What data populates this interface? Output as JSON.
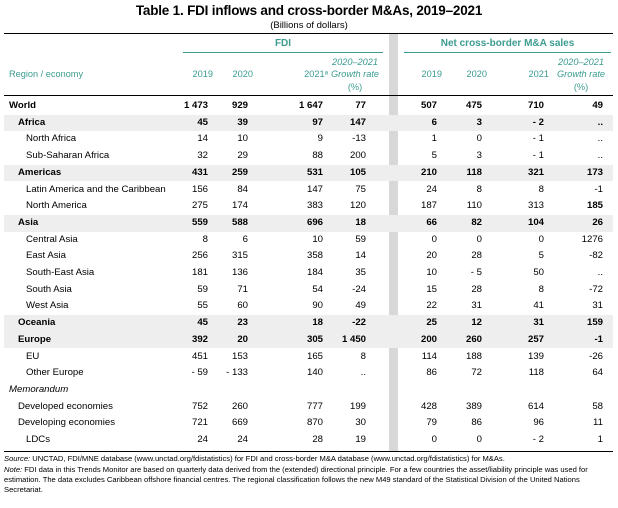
{
  "title": "Table 1. FDI inflows and cross-border M&As, 2019–2021",
  "subtitle": "(Billions of dollars)",
  "groups": {
    "fdi": "FDI",
    "ma": "Net cross-border M&A sales"
  },
  "headers": {
    "region": "Region / economy",
    "fdi_2019": "2019",
    "fdi_2020": "2020",
    "fdi_2021": "2021ᵃ",
    "fdi_rate_1": "2020–2021",
    "fdi_rate_2": "Growth rate",
    "fdi_rate_3": "(%)",
    "ma_2019": "2019",
    "ma_2020": "2020",
    "ma_2021": "2021",
    "ma_rate_1": "2020–2021",
    "ma_rate_2": "Growth rate",
    "ma_rate_3": "(%)"
  },
  "rows": [
    {
      "label": "World",
      "v": [
        "1 473",
        "929",
        "1 647",
        "77",
        "507",
        "475",
        "710",
        "49"
      ]
    },
    {
      "label": "Africa",
      "v": [
        "45",
        "39",
        "97",
        "147",
        "6",
        "3",
        "- 2",
        ".."
      ]
    },
    {
      "label": "North Africa",
      "v": [
        "14",
        "10",
        "9",
        "-13",
        "1",
        "0",
        "- 1",
        ".."
      ]
    },
    {
      "label": "Sub-Saharan Africa",
      "v": [
        "32",
        "29",
        "88",
        "200",
        "5",
        "3",
        "- 1",
        ".."
      ]
    },
    {
      "label": "Americas",
      "v": [
        "431",
        "259",
        "531",
        "105",
        "210",
        "118",
        "321",
        "173"
      ]
    },
    {
      "label": "Latin America and the Caribbean",
      "v": [
        "156",
        "84",
        "147",
        "75",
        "24",
        "8",
        "8",
        "-1"
      ]
    },
    {
      "label": "North America",
      "v": [
        "275",
        "174",
        "383",
        "120",
        "187",
        "110",
        "313",
        "185"
      ]
    },
    {
      "label": "Asia",
      "v": [
        "559",
        "588",
        "696",
        "18",
        "66",
        "82",
        "104",
        "26"
      ]
    },
    {
      "label": "Central Asia",
      "v": [
        "8",
        "6",
        "10",
        "59",
        "0",
        "0",
        "0",
        "1276"
      ]
    },
    {
      "label": "East Asia",
      "v": [
        "256",
        "315",
        "358",
        "14",
        "20",
        "28",
        "5",
        "-82"
      ]
    },
    {
      "label": "South-East Asia",
      "v": [
        "181",
        "136",
        "184",
        "35",
        "10",
        "- 5",
        "50",
        ".."
      ]
    },
    {
      "label": "South Asia",
      "v": [
        "59",
        "71",
        "54",
        "-24",
        "15",
        "28",
        "8",
        "-72"
      ]
    },
    {
      "label": "West Asia",
      "v": [
        "55",
        "60",
        "90",
        "49",
        "22",
        "31",
        "41",
        "31"
      ]
    },
    {
      "label": "Oceania",
      "v": [
        "45",
        "23",
        "18",
        "-22",
        "25",
        "12",
        "31",
        "159"
      ]
    },
    {
      "label": "Europe",
      "v": [
        "392",
        "20",
        "305",
        "1 450",
        "200",
        "260",
        "257",
        "-1"
      ]
    },
    {
      "label": "EU",
      "v": [
        "451",
        "153",
        "165",
        "8",
        "114",
        "188",
        "139",
        "-26"
      ]
    },
    {
      "label": "Other Europe",
      "v": [
        "- 59",
        "- 133",
        "140",
        "..",
        "86",
        "72",
        "118",
        "64"
      ]
    },
    {
      "label": "Memorandum",
      "v": [
        "",
        "",
        "",
        "",
        "",
        "",
        "",
        ""
      ]
    },
    {
      "label": "Developed economies",
      "v": [
        "752",
        "260",
        "777",
        "199",
        "428",
        "389",
        "614",
        "58"
      ]
    },
    {
      "label": "Developing economies",
      "v": [
        "721",
        "669",
        "870",
        "30",
        "79",
        "86",
        "96",
        "11"
      ]
    },
    {
      "label": "LDCs",
      "v": [
        "24",
        "24",
        "28",
        "19",
        "0",
        "0",
        "- 2",
        "1"
      ]
    }
  ],
  "footnotes": {
    "source_label": "Source:",
    "source_text": "UNCTAD, FDI/MNE database (www.unctad.org/fdistatistics) for FDI and cross-border M&A database (www.unctad.org/fdistatistics) for M&As.",
    "note_label": "Note:",
    "note_text": "FDI data in this Trends Monitor are based on quarterly data derived from the (extended) directional principle. For a few countries the asset/liability principle was used for estimation. The data excludes Caribbean offshore financial centres. The regional classification follows the new M49 standard of the Statistical Division of the United Nations Secretariat."
  }
}
